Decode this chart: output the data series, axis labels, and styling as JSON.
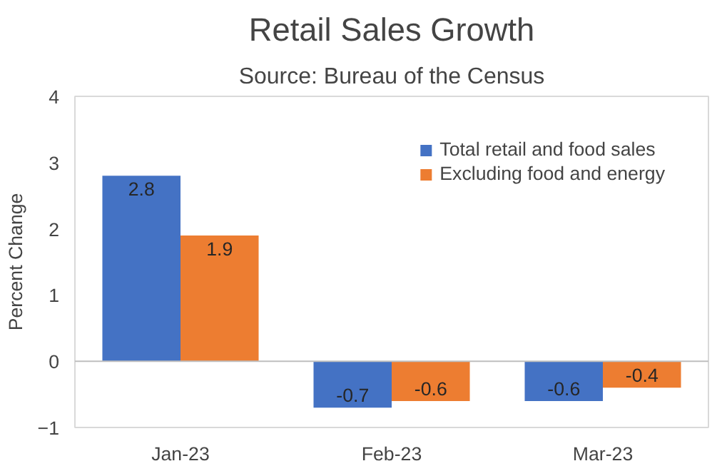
{
  "chart_data": {
    "type": "bar",
    "title": "Retail Sales Growth",
    "subtitle": "Source: Bureau of the Census",
    "ylabel": "Percent Change",
    "categories": [
      "Jan-23",
      "Feb-23",
      "Mar-23"
    ],
    "series": [
      {
        "name": "Total retail and food sales",
        "color": "#4472c4",
        "values": [
          2.8,
          -0.7,
          -0.6
        ]
      },
      {
        "name": "Excluding food and energy",
        "color": "#ed7d31",
        "values": [
          1.9,
          -0.6,
          -0.4
        ]
      }
    ],
    "ylim": [
      -1,
      4
    ],
    "yticks": [
      -1,
      0,
      1,
      2,
      3,
      4
    ],
    "grid": false,
    "ref_lines": [
      {
        "axis": "y",
        "value": 0,
        "color": "#bfbfbf"
      }
    ],
    "legend": "top right",
    "data_labels": true
  }
}
